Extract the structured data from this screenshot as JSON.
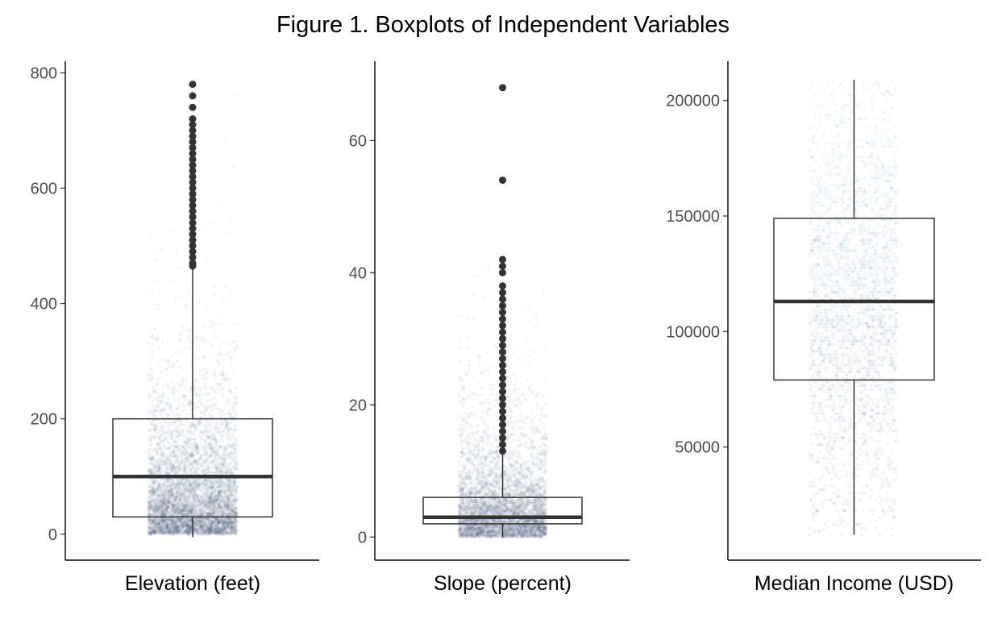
{
  "figure": {
    "title": "Figure 1. Boxplots of Independent Variables"
  },
  "colors": {
    "jitter_low": "#1d3557",
    "jitter_high": "#5aa6e8",
    "box_line": "#333333",
    "outlier": "#333333"
  },
  "chart_data": [
    {
      "type": "box",
      "xlabel": "Elevation (feet)",
      "ylim": [
        -45,
        820
      ],
      "yticks": [
        0,
        200,
        400,
        600,
        800
      ],
      "box": {
        "min": -5,
        "q1": 30,
        "median": 100,
        "q3": 200,
        "whisker_high": 460
      },
      "outliers": [
        465,
        470,
        480,
        490,
        500,
        510,
        520,
        530,
        540,
        550,
        560,
        570,
        580,
        590,
        600,
        610,
        620,
        630,
        640,
        650,
        660,
        670,
        680,
        690,
        700,
        710,
        720,
        740,
        760,
        780
      ],
      "jitter": {
        "count": 5000,
        "max": 780,
        "decay": 0.012
      }
    },
    {
      "type": "box",
      "xlabel": "Slope (percent)",
      "ylim": [
        -3.5,
        72
      ],
      "yticks": [
        0,
        20,
        40,
        60
      ],
      "box": {
        "min": 0,
        "q1": 2,
        "median": 3,
        "q3": 6,
        "whisker_high": 12.5
      },
      "outliers": [
        13,
        14,
        15,
        16,
        17,
        18,
        19,
        20,
        21,
        22,
        23,
        24,
        25,
        26,
        27,
        28,
        29,
        30,
        31,
        32,
        33,
        34,
        35,
        36,
        37,
        38,
        40,
        41,
        42,
        54,
        68
      ],
      "jitter": {
        "count": 4000,
        "max": 42,
        "decay": 0.18
      }
    },
    {
      "type": "box",
      "xlabel": "Median Income (USD)",
      "ylim": [
        1000,
        217000
      ],
      "yticks": [
        50000,
        100000,
        150000,
        200000
      ],
      "box": {
        "min": 12000,
        "q1": 79000,
        "median": 113000,
        "q3": 149000,
        "whisker_high": 209000
      },
      "outliers": [],
      "jitter": {
        "count": 2600,
        "min": 12000,
        "max": 209000,
        "levels": 150
      }
    }
  ]
}
